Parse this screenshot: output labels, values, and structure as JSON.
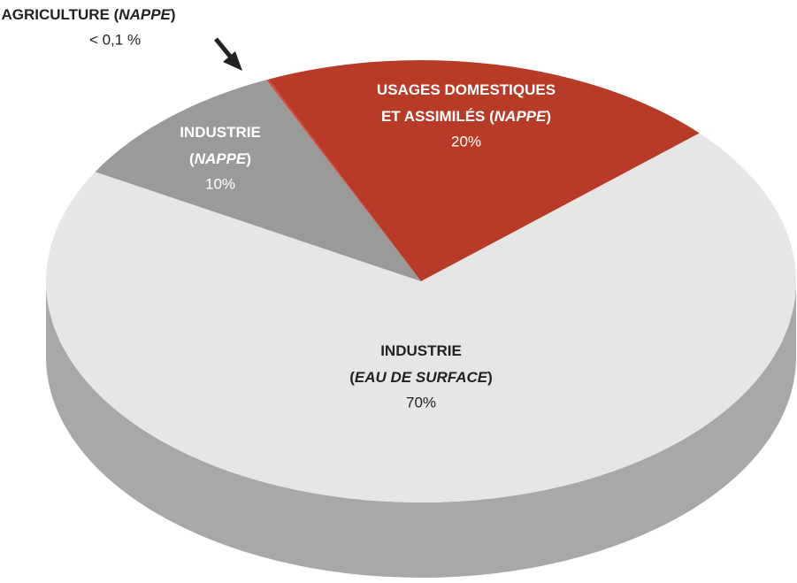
{
  "chart_data": {
    "type": "pie3d",
    "categories": [
      [
        [
          "USAGES DOMESTIQUES"
        ],
        [
          "ET ASSIMILÉS (",
          "NAPPE",
          ")"
        ]
      ],
      [
        [
          "INDUSTRIE"
        ],
        [
          "(",
          "EAU DE SURFACE",
          ")"
        ]
      ],
      [
        [
          "INDUSTRIE"
        ],
        [
          "(",
          "NAPPE",
          ")"
        ]
      ],
      [
        [
          "AGRICULTURE (",
          "NAPPE",
          ")"
        ]
      ]
    ],
    "values": [
      20,
      70,
      10,
      0.1
    ],
    "value_labels": [
      "20%",
      "70%",
      "10%",
      "< 0,1 %"
    ],
    "colors": [
      "#b83b27",
      "#e6e6e6",
      "#9a9a9a",
      "#d4483a"
    ]
  }
}
